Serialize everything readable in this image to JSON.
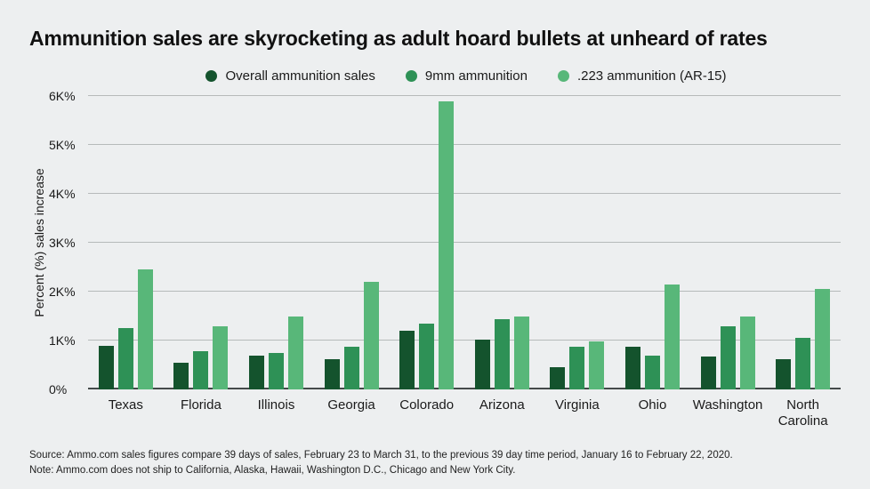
{
  "page": {
    "background": "#edeff0",
    "source_line": "Source: Ammo.com sales figures compare 39 days of sales, February 23 to March 31, to the previous 39 day time period, January 16 to February 22, 2020.",
    "note_line": "Note: Ammo.com does not ship to California, Alaska, Hawaii, Washington D.C., Chicago and New York City."
  },
  "colors": {
    "background": "#edeff0",
    "grid": "#b6baba",
    "axis": "#444a4a",
    "overall": "#14532d",
    "nine_mm": "#2e9156",
    "ar15": "#58b779"
  },
  "chart_data": {
    "type": "bar",
    "title": "Ammunition sales are skyrocketing as adult hoard bullets at unheard of rates",
    "ylabel": "Percent (%) sales increase",
    "xlabel": "",
    "ylim": [
      0,
      6000
    ],
    "ytick_step": 1000,
    "ytick_labels": [
      "0%",
      "1K%",
      "2K%",
      "3K%",
      "4K%",
      "5K%",
      "6K%"
    ],
    "grid": true,
    "legend_position": "top",
    "categories": [
      "Texas",
      "Florida",
      "Illinois",
      "Georgia",
      "Colorado",
      "Arizona",
      "Virginia",
      "Ohio",
      "Washington",
      "North Carolina"
    ],
    "series": [
      {
        "name": "Overall ammunition sales",
        "color": "#14532d",
        "values": [
          900,
          550,
          700,
          620,
          1200,
          1020,
          450,
          880,
          680,
          620
        ]
      },
      {
        "name": "9mm ammunition",
        "color": "#2e9156",
        "values": [
          1250,
          780,
          750,
          880,
          1350,
          1430,
          880,
          700,
          1300,
          1050
        ]
      },
      {
        "name": ".223 ammunition (AR-15)",
        "color": "#58b779",
        "values": [
          2450,
          1300,
          1500,
          2200,
          5900,
          1500,
          980,
          2150,
          1500,
          2050
        ]
      }
    ]
  }
}
